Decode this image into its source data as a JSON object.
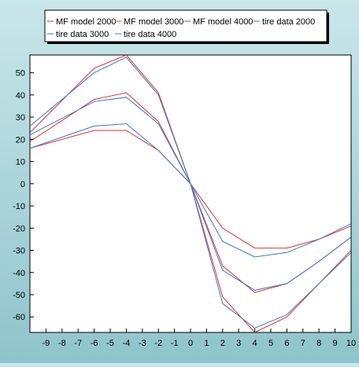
{
  "chart_data": {
    "type": "line",
    "title": "",
    "xlabel": "",
    "ylabel": "",
    "xlim": [
      -10,
      10
    ],
    "ylim": [
      -67,
      58
    ],
    "x_ticks": [
      -9,
      -8,
      -7,
      -6,
      -5,
      -4,
      -3,
      -2,
      -1,
      0,
      1,
      2,
      3,
      4,
      5,
      6,
      7,
      8,
      9,
      10
    ],
    "y_ticks": [
      -60,
      -50,
      -40,
      -30,
      -20,
      -10,
      0,
      10,
      20,
      30,
      40,
      50
    ],
    "grid": false,
    "legend_position": "top",
    "series": [
      {
        "name": "MF model 2000",
        "color": "#e03030",
        "x": [
          -10,
          -6,
          -4,
          -2,
          0,
          2,
          4,
          6,
          8,
          10
        ],
        "y": [
          16,
          24,
          24,
          15,
          0,
          -20,
          -29,
          -29,
          -25,
          -19
        ]
      },
      {
        "name": "MF model 3000",
        "color": "#e03030",
        "x": [
          -10,
          -6,
          -4,
          -2,
          0,
          2,
          4,
          6,
          8,
          10
        ],
        "y": [
          19,
          38,
          41,
          28,
          0,
          -37,
          -49,
          -45,
          -35,
          -24
        ]
      },
      {
        "name": "MF model 4000",
        "color": "#e03030",
        "x": [
          -10,
          -6,
          -4,
          -2,
          0,
          2,
          4,
          6,
          8,
          10
        ],
        "y": [
          23,
          52,
          58,
          41,
          0,
          -51,
          -67,
          -60,
          -45,
          -30
        ]
      },
      {
        "name": "tire data 2000",
        "color": "#3a78c8",
        "x": [
          -10,
          -6,
          -4,
          -2,
          0,
          2,
          4,
          6,
          8,
          10
        ],
        "y": [
          16,
          26,
          27,
          15,
          0,
          -26,
          -33,
          -31,
          -25,
          -18
        ]
      },
      {
        "name": "tire data 3000",
        "color": "#3a78c8",
        "x": [
          -10,
          -6,
          -4,
          -2,
          0,
          2,
          4,
          6,
          8,
          10
        ],
        "y": [
          22,
          37,
          39,
          27,
          0,
          -39,
          -48,
          -45,
          -35,
          -24
        ]
      },
      {
        "name": "tire data 4000",
        "color": "#3a78c8",
        "x": [
          -10,
          -6,
          -4,
          -2,
          0,
          2,
          4,
          6,
          8,
          10
        ],
        "y": [
          26,
          50,
          57,
          40,
          0,
          -54,
          -65,
          -59,
          -45,
          -31
        ]
      }
    ]
  }
}
